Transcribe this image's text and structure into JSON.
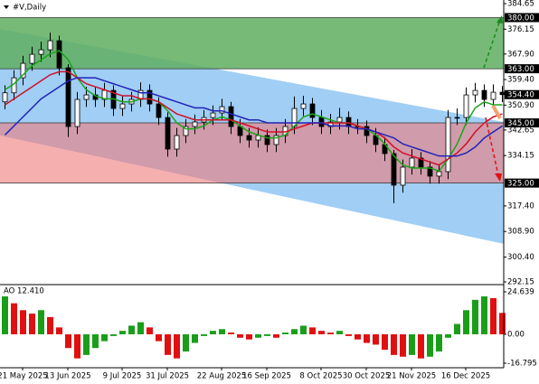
{
  "chart_data": [
    {
      "type": "candlestick",
      "title": "#V,Daily",
      "categories": [
        null,
        null,
        "21 May 2025",
        null,
        null,
        null,
        null,
        "13 Jun 2025",
        null,
        null,
        null,
        null,
        null,
        "9 Jul 2025",
        null,
        null,
        null,
        null,
        "31 Jul 2025",
        null,
        null,
        null,
        null,
        null,
        "22 Aug 2025",
        null,
        null,
        null,
        null,
        "16 Sep 2025",
        null,
        null,
        null,
        null,
        null,
        "8 Oct 2025",
        null,
        null,
        null,
        null,
        "30 Oct 2025",
        null,
        null,
        null,
        null,
        "21 Nov 2025",
        null,
        null,
        null,
        null,
        null,
        "16 Dec 2025",
        null,
        null,
        null,
        null
      ],
      "ohlc": {
        "open": [
          352.0,
          355.0,
          360.0,
          364.8,
          367.8,
          369.3,
          372.3,
          363.3,
          343.8,
          352.8,
          354.3,
          352.8,
          355.8,
          349.8,
          351.3,
          352.8,
          355.8,
          351.3,
          346.8,
          336.3,
          340.8,
          343.8,
          345.3,
          346.8,
          348.3,
          350.4,
          343.8,
          340.8,
          339.3,
          340.8,
          337.8,
          340.8,
          343.8,
          349.8,
          351.3,
          346.8,
          343.8,
          345.3,
          346.8,
          343.8,
          343.8,
          340.8,
          337.8,
          334.8,
          324.3,
          330.3,
          333.3,
          330.3,
          327.3,
          328.8,
          346.8,
          346.8,
          354.3,
          355.8,
          352.8,
          355.2
        ],
        "high": [
          357.5,
          362.5,
          367.3,
          370.3,
          372.0,
          375.0,
          374.0,
          364.5,
          355.3,
          357.0,
          356.8,
          358.3,
          357.5,
          354.0,
          355.3,
          358.5,
          357.8,
          353.5,
          348.5,
          343.3,
          346.3,
          347.8,
          349.3,
          350.8,
          353.0,
          352.0,
          346.3,
          343.3,
          343.5,
          342.8,
          343.3,
          346.3,
          353.8,
          354.0,
          353.3,
          349.3,
          348.0,
          350.0,
          348.8,
          346.3,
          345.8,
          343.3,
          340.3,
          336.0,
          332.8,
          336.3,
          335.3,
          332.3,
          331.3,
          349.3,
          349.8,
          356.8,
          358.3,
          357.8,
          357.8,
          357.3
        ],
        "low": [
          349.5,
          352.5,
          357.5,
          362.3,
          365.3,
          366.8,
          360.8,
          340.3,
          341.3,
          350.3,
          350.3,
          350.3,
          347.3,
          347.3,
          348.8,
          350.3,
          348.8,
          344.3,
          333.8,
          333.8,
          338.3,
          341.3,
          342.8,
          344.3,
          345.8,
          341.3,
          338.3,
          336.8,
          336.8,
          335.3,
          335.3,
          338.3,
          341.3,
          347.3,
          344.3,
          341.3,
          341.3,
          342.8,
          341.3,
          341.3,
          338.3,
          335.3,
          332.3,
          318.3,
          321.8,
          327.8,
          327.8,
          324.8,
          324.8,
          326.3,
          344.3,
          344.3,
          351.8,
          350.3,
          350.3,
          351.9
        ],
        "close": [
          355.0,
          360.0,
          364.8,
          367.8,
          369.3,
          372.3,
          363.3,
          343.8,
          352.8,
          354.3,
          352.8,
          355.8,
          349.8,
          351.3,
          352.8,
          355.8,
          351.3,
          346.8,
          336.3,
          340.8,
          343.8,
          345.3,
          346.8,
          348.3,
          350.4,
          343.8,
          340.8,
          339.3,
          340.8,
          337.8,
          340.8,
          343.8,
          349.8,
          351.3,
          346.8,
          343.8,
          345.3,
          346.8,
          343.8,
          343.8,
          340.8,
          337.8,
          334.8,
          324.3,
          330.3,
          333.3,
          330.3,
          327.3,
          328.8,
          346.8,
          346.8,
          354.3,
          355.8,
          352.8,
          355.2,
          354.4
        ]
      },
      "up_color": "#ffffff",
      "down_color": "#000000",
      "lines": [
        {
          "color": "#1aa51a",
          "values": [
            356,
            358,
            361,
            364,
            366,
            368,
            369,
            366,
            360,
            356,
            354,
            353,
            353,
            352,
            352,
            353,
            353,
            352,
            349,
            345,
            343,
            343,
            344,
            346,
            347,
            346,
            344,
            342,
            341,
            340,
            340,
            341,
            344,
            347,
            348,
            347,
            346,
            345,
            345,
            344,
            343,
            341,
            338,
            334,
            331,
            330,
            330,
            330,
            329,
            333,
            338,
            345,
            350,
            352,
            351,
            351
          ]
        },
        {
          "color": "#d0102a",
          "values": [
            351,
            353,
            355,
            357,
            359,
            361,
            362,
            362,
            360,
            358,
            357,
            356,
            355,
            354,
            354,
            353,
            353,
            352,
            350,
            348,
            347,
            346,
            346,
            346,
            346,
            346,
            345,
            344,
            343,
            342,
            342,
            342,
            343,
            344,
            345,
            345,
            345,
            345,
            345,
            344,
            343,
            342,
            340,
            337,
            335,
            334,
            333,
            332,
            331,
            333,
            335,
            338,
            342,
            345,
            347,
            348
          ]
        },
        {
          "color": "#2222b8",
          "values": [
            341,
            344,
            347,
            350,
            353,
            355,
            357,
            359,
            360,
            360,
            360,
            359,
            358,
            357,
            356,
            355,
            355,
            354,
            353,
            352,
            351,
            350,
            350,
            349,
            349,
            348,
            347,
            346,
            346,
            345,
            345,
            345,
            345,
            345,
            345,
            345,
            344,
            344,
            344,
            343,
            343,
            342,
            341,
            340,
            338,
            337,
            336,
            335,
            334,
            334,
            334,
            335,
            337,
            340,
            342,
            344
          ]
        }
      ],
      "zones": [
        {
          "top": 380,
          "bottom": 363,
          "color": "#5fae5f"
        },
        {
          "top": 345,
          "bottom": 325,
          "color": "#f07a7a"
        }
      ],
      "channel": {
        "upper": [
          376.2,
          345.3
        ],
        "lower": [
          340.8,
          304.8
        ],
        "color": "#8fc6f2"
      },
      "levels": [
        {
          "value": 380,
          "label": "380.00"
        },
        {
          "value": 363,
          "label": "363.00"
        },
        {
          "value": 354.4,
          "label": "354.40"
        },
        {
          "value": 345,
          "label": "345.00"
        },
        {
          "value": 325,
          "label": "325.00"
        }
      ],
      "ylim": [
        292.15,
        384.65
      ],
      "yticks": [
        384.65,
        376.15,
        {
          "value": 367.9,
          "label": "367.90"
        },
        {
          "value": 359.4,
          "label": "359.40"
        },
        {
          "value": 350.9,
          "label": "350.90"
        },
        342.65,
        334.15,
        {
          "value": 317.4,
          "label": "317.40"
        },
        {
          "value": 308.9,
          "label": "308.90"
        },
        {
          "value": 300.4,
          "label": "300.40"
        },
        292.15
      ]
    },
    {
      "type": "bar",
      "title": "AO 12.410",
      "values": [
        22,
        18,
        14,
        12,
        14,
        10,
        4,
        -8,
        -14,
        -12,
        -8,
        -4,
        -1,
        2,
        5,
        7,
        4,
        -4,
        -12,
        -14,
        -10,
        -5,
        -1,
        2,
        3,
        1,
        -2,
        -3,
        -2,
        -1,
        -2,
        1,
        3,
        5,
        4,
        2,
        1,
        2,
        -1,
        -3,
        -5,
        -6,
        -9,
        -12,
        -13,
        -12,
        -14,
        -13,
        -10,
        -2,
        6,
        14,
        20,
        22,
        21,
        12.41
      ],
      "up_color": "#1a9e1a",
      "down_color": "#e01010",
      "ylim": [
        -16.795,
        24.639
      ],
      "yticks": [
        24.639,
        {
          "value": 0,
          "label": "0.00"
        },
        -16.795
      ]
    }
  ]
}
